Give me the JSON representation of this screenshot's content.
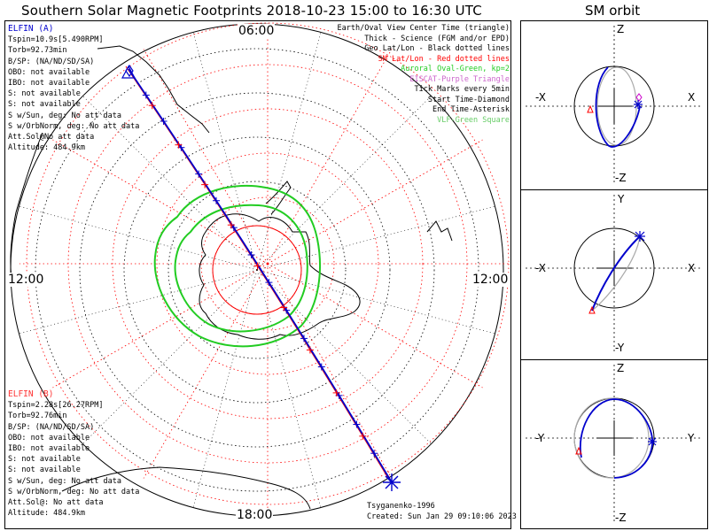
{
  "title": "Southern Solar Magnetic Footprints 2018-10-23 15:00 to 16:30 UTC",
  "sm_orbit_title": "SM orbit",
  "time_labels": {
    "top": "06:00",
    "left": "12:00",
    "right": "12:00",
    "bottom": "18:00"
  },
  "elfin_a": {
    "header": "ELFIN (A)",
    "color": "#0000cc",
    "lines": [
      "Tspin=10.9s[5.490RPM]",
      "Torb=92.73min",
      "B/SP: (NA/ND/SD/SA)",
      "OBO: not available",
      "IBO: not available",
      "S: not available",
      "S: not available",
      "S w/Sun, deg: No att data",
      "S w/OrbNorm, deg: No att data",
      "Att.Sol@No att data",
      "Altitude: 484.9km"
    ]
  },
  "elfin_b": {
    "header": "ELFIN (B)",
    "color": "#ff3333",
    "lines": [
      "Tspin=2.28s[26.27RPM]",
      "Torb=92.76min",
      "B/SP: (NA/ND/SD/SA)",
      "OBO: not available",
      "IBO: not available",
      "S: not available",
      "S: not available",
      "S w/Sun, deg: No att data",
      "S w/OrbNorm, deg: No att data",
      "Att.Sol@: No att data",
      "Altitude: 484.9km"
    ]
  },
  "legend": [
    {
      "text": "Earth/Oval View Center Time (triangle)",
      "color": "#000000"
    },
    {
      "text": "Thick - Science (FGM and/or EPD)",
      "color": "#000000"
    },
    {
      "text": "Geo Lat/Lon - Black dotted lines",
      "color": "#000000"
    },
    {
      "text": "SM Lat/Lon - Red dotted lines",
      "color": "#ff0000"
    },
    {
      "text": "Auroral Oval-Green, kp=2",
      "color": "#22cc22"
    },
    {
      "text": "EISCAT-Purple Triangle",
      "color": "#cc66cc"
    },
    {
      "text": "Tick Marks every 5min",
      "color": "#000000"
    },
    {
      "text": "Start Time-Diamond",
      "color": "#000000"
    },
    {
      "text": "End Time-Asterisk",
      "color": "#000000"
    },
    {
      "text": "VLF-Green Square",
      "color": "#66cc66"
    }
  ],
  "credits": {
    "model": "Tsyganenko-1996",
    "created": "Created: Sun Jan 29 09:10:06 2023"
  },
  "orbit_panels": [
    {
      "top": "Z",
      "bottom": "-Z",
      "left": "-X",
      "right": "X"
    },
    {
      "top": "Y",
      "bottom": "-Y",
      "left": "-X",
      "right": "X"
    },
    {
      "top": "Z",
      "bottom": "-Z",
      "left": "-Y",
      "right": "Y"
    }
  ],
  "colors": {
    "elfin_a_track": "#0000cc",
    "elfin_b_track": "#ff0000",
    "auroral_oval": "#22cc22",
    "sm_grid": "#ff0000"
  }
}
